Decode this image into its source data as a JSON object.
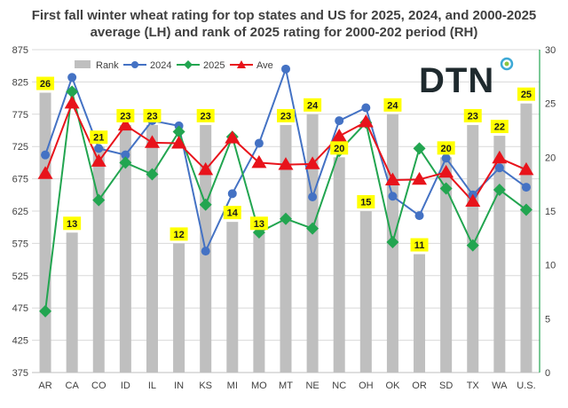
{
  "chart_data": {
    "type": "bar+line",
    "title": "First fall winter wheat rating for top states and US for  2025, 2024, and 2000-2025 average (LH) and rank of 2025 rating for 2000-202 period (RH)",
    "title_lines": [
      "First fall winter wheat rating for top states and US for  2025, 2024, and 2000-2025",
      "average (LH) and rank of 2025 rating for 2000-202 period (RH)"
    ],
    "categories": [
      "AR",
      "CA",
      "CO",
      "ID",
      "IL",
      "IN",
      "KS",
      "MI",
      "MO",
      "MT",
      "NE",
      "NC",
      "OH",
      "OK",
      "OR",
      "SD",
      "TX",
      "WA",
      "U.S."
    ],
    "left_axis": {
      "min": 375,
      "max": 875,
      "ticks": [
        375,
        425,
        475,
        525,
        575,
        625,
        675,
        725,
        775,
        825,
        875
      ]
    },
    "right_axis": {
      "min": 0,
      "max": 30,
      "ticks": [
        0,
        5,
        10,
        15,
        20,
        25,
        30
      ]
    },
    "series": [
      {
        "name": "Rank",
        "kind": "bar",
        "axis": "right",
        "color": "#bfbfbf",
        "values": [
          26,
          13,
          21,
          23,
          23,
          12,
          23,
          14,
          13,
          23,
          24,
          20,
          15,
          24,
          11,
          20,
          23,
          22,
          25
        ]
      },
      {
        "name": "2024",
        "kind": "line",
        "axis": "left",
        "color": "#4472c4",
        "marker": "circle",
        "values": [
          712,
          832,
          722,
          712,
          765,
          757,
          563,
          652,
          730,
          845,
          647,
          765,
          785,
          648,
          618,
          707,
          650,
          692,
          662
        ]
      },
      {
        "name": "2025",
        "kind": "line",
        "axis": "left",
        "color": "#22a550",
        "marker": "diamond",
        "values": [
          470,
          810,
          642,
          700,
          682,
          748,
          635,
          740,
          592,
          613,
          598,
          718,
          762,
          577,
          722,
          660,
          572,
          658,
          627
        ]
      },
      {
        "name": "Ave",
        "kind": "line",
        "axis": "left",
        "color": "#e8131b",
        "marker": "triangle",
        "values": [
          683,
          792,
          702,
          758,
          731,
          730,
          689,
          738,
          700,
          697,
          698,
          741,
          763,
          673,
          674,
          685,
          640,
          707,
          689
        ]
      }
    ],
    "legend": [
      "Rank",
      "2024",
      "2025",
      "Ave"
    ],
    "legend_position": "top"
  },
  "logo": {
    "text": "DTN",
    "accent_colors": [
      "#3da9d6",
      "#8cc63f"
    ]
  }
}
